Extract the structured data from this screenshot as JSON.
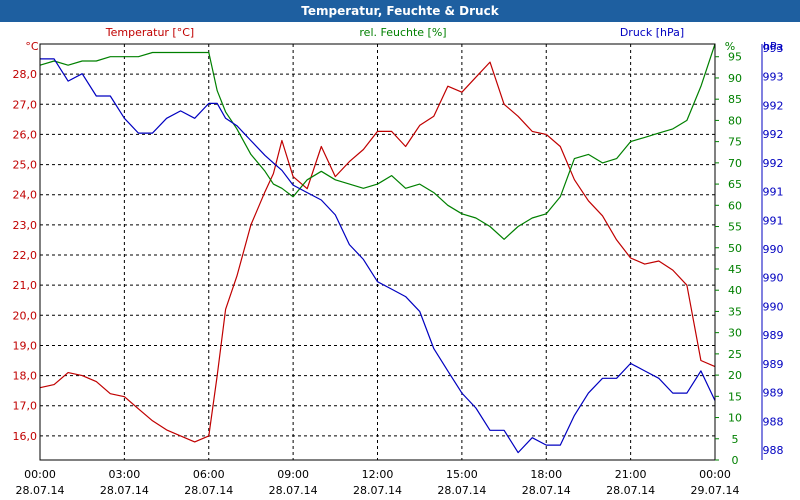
{
  "title": "Temperatur, Feuchte & Druck",
  "axes": {
    "left_unit": "°C",
    "right1_unit": "%",
    "right2_unit": "hPa",
    "legend_temp": "Temperatur [°C]",
    "legend_hum": "rel. Feuchte [%]",
    "legend_press": "Druck [hPa]"
  },
  "colors": {
    "temp": "#c00000",
    "hum": "#008000",
    "press": "#0000c0",
    "grid": "#000000",
    "titlebar": "#1e5fa0"
  },
  "chart_data": {
    "type": "line",
    "x_unit": "hours since 28.07.14 00:00",
    "xlim": [
      0,
      24
    ],
    "x_ticks": [
      {
        "time": "00:00",
        "date": "28.07.14"
      },
      {
        "time": "03:00",
        "date": "28.07.14"
      },
      {
        "time": "06:00",
        "date": "28.07.14"
      },
      {
        "time": "09:00",
        "date": "28.07.14"
      },
      {
        "time": "12:00",
        "date": "28.07.14"
      },
      {
        "time": "15:00",
        "date": "28.07.14"
      },
      {
        "time": "18:00",
        "date": "28.07.14"
      },
      {
        "time": "21:00",
        "date": "28.07.14"
      },
      {
        "time": "00:00",
        "date": "29.07.14"
      }
    ],
    "y_left": {
      "label": "°C",
      "lim": [
        15.2,
        29.0
      ],
      "ticks": [
        "16,0",
        "17,0",
        "18,0",
        "19,0",
        "20,0",
        "21,0",
        "22,0",
        "23,0",
        "24,0",
        "25,0",
        "26,0",
        "27,0",
        "28,0"
      ]
    },
    "y_right1": {
      "label": "%",
      "lim": [
        0,
        98
      ],
      "ticks": [
        "0",
        "5",
        "10",
        "15",
        "20",
        "25",
        "30",
        "35",
        "40",
        "45",
        "50",
        "55",
        "60",
        "65",
        "70",
        "75",
        "80",
        "85",
        "90",
        "95"
      ]
    },
    "y_right2": {
      "label": "hPa",
      "lim": [
        987.7,
        993.3
      ],
      "ticks": [
        "988",
        "988",
        "989",
        "989",
        "989",
        "990",
        "990",
        "990",
        "991",
        "991",
        "992",
        "992",
        "992",
        "993",
        "993"
      ]
    },
    "grid": true,
    "series": [
      {
        "name": "Temperatur [°C]",
        "axis": "left",
        "x": [
          0,
          0.5,
          1,
          1.5,
          2,
          2.5,
          3,
          3.5,
          4,
          4.5,
          5,
          5.5,
          6,
          6.3,
          6.6,
          7,
          7.5,
          8,
          8.3,
          8.6,
          9,
          9.5,
          10,
          10.5,
          11,
          11.5,
          12,
          12.5,
          13,
          13.5,
          14,
          14.5,
          15,
          15.5,
          16,
          16.5,
          17,
          17.5,
          18,
          18.5,
          19,
          19.5,
          20,
          20.5,
          21,
          21.5,
          22,
          22.5,
          23,
          23.5,
          24
        ],
        "values": [
          17.6,
          17.7,
          18.1,
          18.0,
          17.8,
          17.4,
          17.3,
          16.9,
          16.5,
          16.2,
          16.0,
          15.8,
          16.0,
          18.0,
          20.2,
          21.3,
          23.0,
          24.1,
          24.7,
          25.8,
          24.6,
          24.2,
          25.6,
          24.6,
          25.1,
          25.5,
          26.1,
          26.1,
          25.6,
          26.3,
          26.6,
          27.6,
          27.4,
          27.9,
          28.4,
          27.0,
          26.6,
          26.1,
          26.0,
          25.6,
          24.5,
          23.8,
          23.3,
          22.5,
          21.9,
          21.7,
          21.8,
          21.5,
          21.0,
          18.5,
          18.3
        ]
      },
      {
        "name": "rel. Feuchte [%]",
        "axis": "right1",
        "x": [
          0,
          0.5,
          1,
          1.5,
          2,
          2.5,
          3,
          3.5,
          4,
          4.5,
          5,
          5.5,
          6,
          6.3,
          6.6,
          7,
          7.5,
          8,
          8.3,
          8.6,
          9,
          9.5,
          10,
          10.5,
          11,
          11.5,
          12,
          12.5,
          13,
          13.5,
          14,
          14.5,
          15,
          15.5,
          16,
          16.5,
          17,
          17.5,
          18,
          18.5,
          19,
          19.5,
          20,
          20.5,
          21,
          21.5,
          22,
          22.5,
          23,
          23.5,
          24
        ],
        "values": [
          93,
          94,
          93,
          94,
          94,
          95,
          95,
          95,
          96,
          96,
          96,
          96,
          96,
          87,
          82,
          78,
          72,
          68,
          65,
          64,
          62,
          66,
          68,
          66,
          65,
          64,
          65,
          67,
          64,
          65,
          63,
          60,
          58,
          57,
          55,
          52,
          55,
          57,
          58,
          62,
          71,
          72,
          70,
          71,
          75,
          76,
          77,
          78,
          80,
          88,
          98
        ]
      },
      {
        "name": "Druck [hPa]",
        "axis": "right2",
        "x": [
          0,
          0.5,
          1,
          1.5,
          2,
          2.5,
          3,
          3.5,
          4,
          4.5,
          5,
          5.5,
          6,
          6.3,
          6.6,
          7,
          7.5,
          8,
          8.3,
          8.6,
          9,
          9.5,
          10,
          10.5,
          11,
          11.5,
          12,
          12.5,
          13,
          13.5,
          14,
          14.5,
          15,
          15.5,
          16,
          16.5,
          17,
          17.5,
          18,
          18.5,
          19,
          19.5,
          20,
          20.5,
          21,
          21.5,
          22,
          22.5,
          23,
          23.5,
          24
        ],
        "values": [
          993.1,
          993.1,
          992.8,
          992.9,
          992.6,
          992.6,
          992.3,
          992.1,
          992.1,
          992.3,
          992.4,
          992.3,
          992.5,
          992.5,
          992.3,
          992.2,
          992.0,
          991.8,
          991.7,
          991.6,
          991.4,
          991.3,
          991.2,
          991.0,
          990.6,
          990.4,
          990.1,
          990.0,
          989.9,
          989.7,
          989.2,
          988.9,
          988.6,
          988.4,
          988.1,
          988.1,
          987.8,
          988.0,
          987.9,
          987.9,
          988.3,
          988.6,
          988.8,
          988.8,
          989.0,
          988.9,
          988.8,
          988.6,
          988.6,
          988.9,
          988.5
        ]
      }
    ]
  }
}
